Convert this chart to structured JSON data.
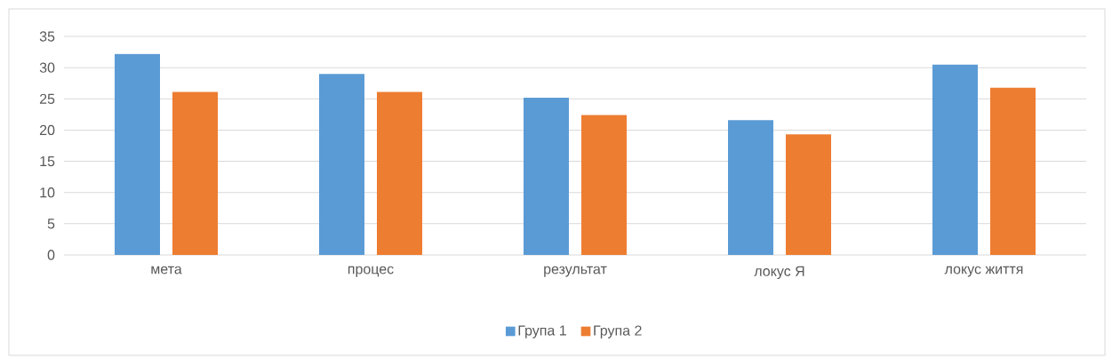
{
  "chart_data": {
    "type": "bar",
    "categories": [
      "мета",
      "процес",
      "результат",
      "локус Я",
      "локус життя"
    ],
    "series": [
      {
        "name": "Група 1",
        "color": "#5b9bd5",
        "values": [
          32.2,
          29.0,
          25.2,
          21.6,
          30.5
        ]
      },
      {
        "name": "Група 2",
        "color": "#ed7d31",
        "values": [
          26.1,
          26.1,
          22.4,
          19.3,
          26.8
        ]
      }
    ],
    "ylim": [
      0,
      35
    ],
    "yticks": [
      0,
      5,
      10,
      15,
      20,
      25,
      30,
      35
    ],
    "grid": "y",
    "legend": "bottom"
  }
}
